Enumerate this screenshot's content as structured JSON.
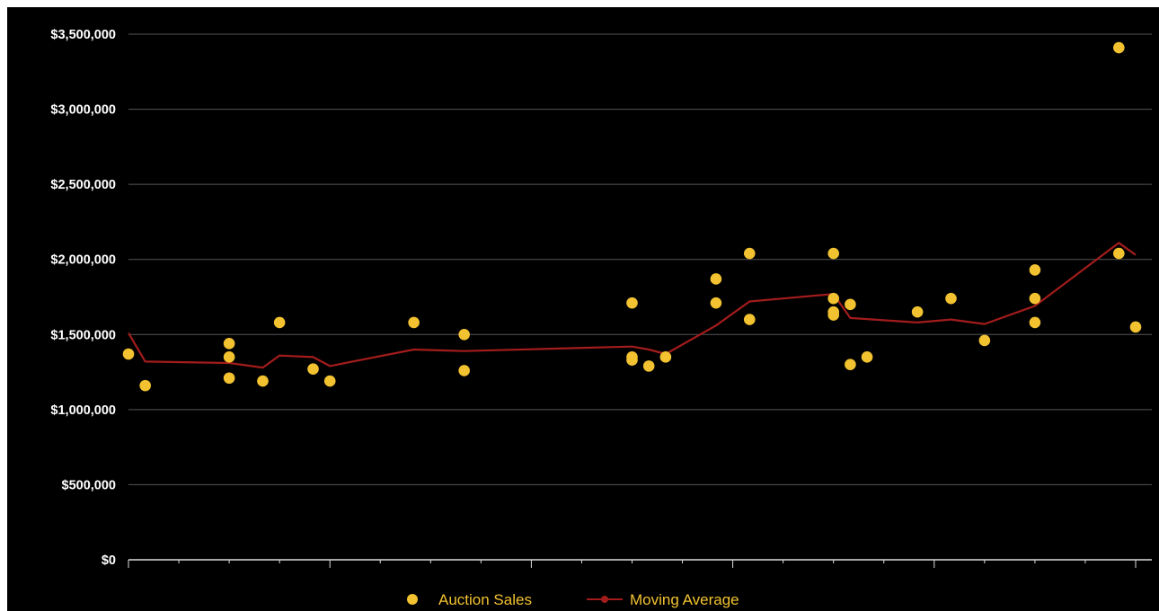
{
  "chart_data": {
    "type": "scatter",
    "title": "",
    "xlabel": "",
    "ylabel": "",
    "x_range": [
      0,
      60
    ],
    "ylim": [
      0,
      3500000
    ],
    "y_ticks": [
      0,
      500000,
      1000000,
      1500000,
      2000000,
      2500000,
      3000000,
      3500000
    ],
    "y_tick_labels": [
      "$0",
      "$500,000",
      "$1,000,000",
      "$1,500,000",
      "$2,000,000",
      "$2,500,000",
      "$3,000,000",
      "$3,500,000"
    ],
    "x_major_ticks": [
      0,
      12,
      24,
      36,
      48,
      60
    ],
    "x_minor_ticks": [
      3,
      6,
      9,
      15,
      18,
      21,
      27,
      30,
      33,
      39,
      42,
      45,
      51,
      54,
      57
    ],
    "grid": true,
    "legend_position": "bottom-center",
    "colors": {
      "background": "#000000",
      "points": "#f2c230",
      "line": "#a31c1c",
      "grid": "#555555",
      "text": "#ffffff"
    },
    "series": [
      {
        "name": "Auction Sales",
        "kind": "scatter",
        "x": [
          0,
          1,
          6,
          6,
          6,
          8,
          9,
          11,
          12,
          17,
          20,
          20,
          30,
          30,
          30,
          31,
          32,
          35,
          35,
          37,
          37,
          42,
          42,
          42,
          42,
          43,
          43,
          44,
          47,
          49,
          51,
          54,
          54,
          54,
          59,
          59,
          60
        ],
        "y": [
          1370000,
          1160000,
          1440000,
          1350000,
          1210000,
          1190000,
          1580000,
          1270000,
          1190000,
          1580000,
          1500000,
          1260000,
          1710000,
          1350000,
          1330000,
          1290000,
          1350000,
          1870000,
          1710000,
          2040000,
          1600000,
          2040000,
          1740000,
          1650000,
          1630000,
          1700000,
          1300000,
          1350000,
          1650000,
          1740000,
          1460000,
          1930000,
          1740000,
          1580000,
          3410000,
          2040000,
          1550000
        ]
      },
      {
        "name": "Moving Average",
        "kind": "line",
        "x": [
          0,
          1,
          6,
          8,
          9,
          11,
          12,
          17,
          20,
          30,
          31,
          32,
          35,
          37,
          42,
          43,
          47,
          49,
          51,
          54,
          59,
          60
        ],
        "y": [
          1510000,
          1320000,
          1310000,
          1280000,
          1360000,
          1350000,
          1290000,
          1400000,
          1390000,
          1420000,
          1400000,
          1370000,
          1560000,
          1720000,
          1770000,
          1610000,
          1580000,
          1600000,
          1570000,
          1690000,
          2110000,
          2030000
        ]
      }
    ]
  }
}
